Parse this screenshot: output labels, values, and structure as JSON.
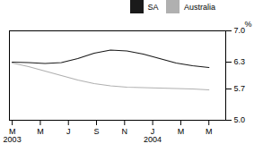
{
  "chart_data": {
    "type": "line",
    "ylabel": "%",
    "x": [
      0,
      0.5833333333333334,
      1.1666666666666667,
      1.75,
      2.3333333333333335,
      2.916666666666667,
      3.5,
      4.083333333333334,
      4.666666666666667,
      5.25,
      5.833333333333334,
      6.416666666666667,
      7
    ],
    "series": [
      {
        "name": "SA",
        "color": "#1a1a1a",
        "values": [
          6.3,
          6.29,
          6.27,
          6.29,
          6.38,
          6.5,
          6.57,
          6.55,
          6.48,
          6.38,
          6.28,
          6.22,
          6.18
        ]
      },
      {
        "name": "Australia",
        "color": "#b0b0b0",
        "values": [
          6.28,
          6.2,
          6.1,
          6.0,
          5.9,
          5.82,
          5.77,
          5.74,
          5.73,
          5.72,
          5.71,
          5.7,
          5.68
        ]
      }
    ],
    "xlim": [
      -0.1,
      7.6
    ],
    "xticks": [
      {
        "value": 0,
        "label": "M"
      },
      {
        "value": 1,
        "label": "M"
      },
      {
        "value": 2,
        "label": "J"
      },
      {
        "value": 3,
        "label": "S"
      },
      {
        "value": 4,
        "label": "N"
      },
      {
        "value": 5,
        "label": "J"
      },
      {
        "value": 6,
        "label": "M"
      },
      {
        "value": 7,
        "label": "M"
      }
    ],
    "ylim": [
      5.0,
      7.0
    ],
    "yticks": [
      {
        "value": 5.0,
        "label": "5.0"
      },
      5.7,
      6.3,
      {
        "value": 7.0,
        "label": "7.0"
      }
    ],
    "annotations": [
      {
        "text": "2003",
        "x": 0
      },
      {
        "text": "2004",
        "x": 5
      }
    ],
    "legend": "upper right",
    "grid": false
  }
}
